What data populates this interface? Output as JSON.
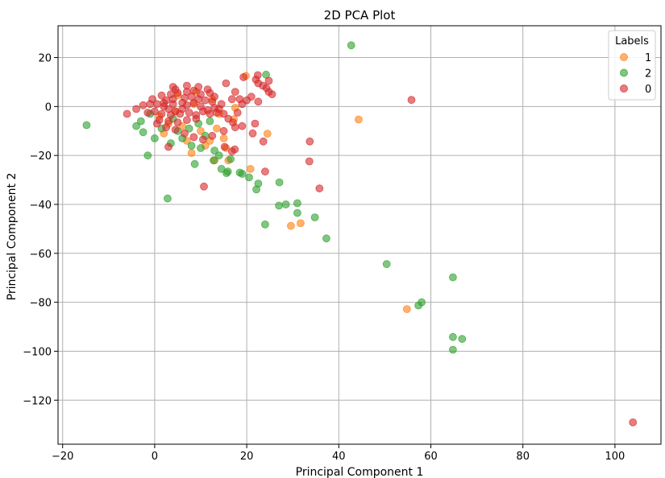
{
  "chart_data": {
    "type": "scatter",
    "title": "2D PCA Plot",
    "xlabel": "Principal Component 1",
    "ylabel": "Principal Component 2",
    "xlim": [
      -21,
      110
    ],
    "ylim": [
      -138,
      33
    ],
    "xticks": [
      -20,
      0,
      20,
      40,
      60,
      80,
      100
    ],
    "yticks": [
      20,
      0,
      -20,
      -40,
      -60,
      -80,
      -100,
      -120
    ],
    "grid": true,
    "legend": {
      "title": "Labels",
      "placement": "top-right"
    },
    "series": [
      {
        "name": "1",
        "color": "#ff7f0e",
        "points": [
          [
            44.3,
            -5.3
          ],
          [
            54.8,
            -82.8
          ],
          [
            29.6,
            -48.8
          ],
          [
            31.7,
            -47.7
          ],
          [
            20.8,
            -25.5
          ],
          [
            24.5,
            -11.1
          ],
          [
            17.2,
            -5.2
          ],
          [
            13.0,
            -22.0
          ],
          [
            15.5,
            -17.0
          ],
          [
            8.0,
            -19.0
          ],
          [
            12.0,
            -14.0
          ],
          [
            10.0,
            -10.0
          ],
          [
            6.0,
            -8.0
          ],
          [
            3.0,
            -7.0
          ],
          [
            14.0,
            -3.0
          ],
          [
            17.5,
            -0.5
          ],
          [
            5.0,
            4.5
          ],
          [
            9.0,
            6.0
          ],
          [
            2.0,
            -11.0
          ],
          [
            11.0,
            -16.0
          ],
          [
            16.0,
            -22.0
          ],
          [
            19.8,
            12.5
          ],
          [
            7.0,
            -14.0
          ],
          [
            13.5,
            -9.0
          ],
          [
            4.5,
            -2.0
          ],
          [
            8.5,
            1.0
          ],
          [
            12.5,
            3.0
          ],
          [
            15.0,
            -13.0
          ],
          [
            1.0,
            -4.0
          ]
        ]
      },
      {
        "name": "2",
        "color": "#2ca02c",
        "points": [
          [
            42.7,
            25.0
          ],
          [
            -14.8,
            -7.6
          ],
          [
            -1.5,
            -20.0
          ],
          [
            2.8,
            -37.6
          ],
          [
            24.0,
            -48.2
          ],
          [
            37.3,
            -53.9
          ],
          [
            34.8,
            -45.3
          ],
          [
            31.0,
            -43.5
          ],
          [
            31.0,
            -39.5
          ],
          [
            28.5,
            -40.0
          ],
          [
            27.0,
            -40.5
          ],
          [
            27.1,
            -31.0
          ],
          [
            22.1,
            -33.9
          ],
          [
            22.5,
            -31.5
          ],
          [
            20.5,
            -29.0
          ],
          [
            19.0,
            -27.5
          ],
          [
            18.5,
            -27.0
          ],
          [
            15.6,
            -27.2
          ],
          [
            15.9,
            -26.6
          ],
          [
            14.5,
            -25.5
          ],
          [
            12.8,
            -22.0
          ],
          [
            8.7,
            -23.5
          ],
          [
            50.4,
            -64.4
          ],
          [
            64.8,
            -69.8
          ],
          [
            58.0,
            -80.0
          ],
          [
            57.3,
            -81.3
          ],
          [
            64.8,
            -94.2
          ],
          [
            66.8,
            -95.0
          ],
          [
            64.8,
            -99.4
          ],
          [
            24.2,
            13.0
          ],
          [
            -4.0,
            -8.0
          ],
          [
            -2.5,
            -10.5
          ],
          [
            0.0,
            -13.0
          ],
          [
            3.5,
            -15.0
          ],
          [
            6.0,
            -13.0
          ],
          [
            8.0,
            -16.0
          ],
          [
            10.0,
            -17.0
          ],
          [
            13.0,
            -18.0
          ],
          [
            14.0,
            -20.0
          ],
          [
            16.5,
            -21.5
          ],
          [
            5.0,
            -10.0
          ],
          [
            1.5,
            -9.0
          ],
          [
            -3.0,
            -6.0
          ],
          [
            -1.0,
            -3.0
          ],
          [
            4.0,
            -5.0
          ],
          [
            11.0,
            -12.0
          ],
          [
            7.5,
            -9.0
          ],
          [
            9.5,
            -7.0
          ],
          [
            12.0,
            -6.0
          ]
        ]
      },
      {
        "name": "0",
        "color": "#d62728",
        "points": [
          [
            103.9,
            -129.1
          ],
          [
            55.8,
            2.7
          ],
          [
            35.8,
            -33.5
          ],
          [
            33.6,
            -22.4
          ],
          [
            33.7,
            -14.3
          ],
          [
            24.0,
            -26.6
          ],
          [
            23.6,
            -14.3
          ],
          [
            10.7,
            -32.7
          ],
          [
            15.2,
            -16.5
          ],
          [
            17.4,
            -17.5
          ],
          [
            16.8,
            -18.3
          ],
          [
            21.3,
            -11.0
          ],
          [
            21.8,
            -7.0
          ],
          [
            19.0,
            -8.0
          ],
          [
            17.5,
            -8.5
          ],
          [
            15.0,
            -10.0
          ],
          [
            12.5,
            -12.0
          ],
          [
            19.3,
            12.0
          ],
          [
            22.0,
            11.0
          ],
          [
            22.5,
            9.5
          ],
          [
            23.5,
            8.5
          ],
          [
            24.3,
            7.5
          ],
          [
            24.8,
            6.0
          ],
          [
            25.5,
            5.0
          ],
          [
            24.8,
            10.5
          ],
          [
            22.4,
            12.8
          ],
          [
            18.5,
            3.0
          ],
          [
            17.5,
            6.0
          ],
          [
            15.5,
            9.5
          ],
          [
            16.8,
            3.0
          ],
          [
            4.0,
            8.0
          ],
          [
            4.5,
            7.0
          ],
          [
            7.0,
            8.5
          ],
          [
            9.5,
            8.0
          ],
          [
            11.5,
            7.0
          ],
          [
            -6.0,
            -3.0
          ],
          [
            -4.0,
            -1.0
          ],
          [
            -2.5,
            0.5
          ],
          [
            -1.0,
            1.0
          ],
          [
            0.5,
            1.0
          ],
          [
            2.0,
            0.0
          ],
          [
            3.0,
            -1.0
          ],
          [
            4.5,
            -2.0
          ],
          [
            6.0,
            -1.0
          ],
          [
            7.0,
            0.5
          ],
          [
            8.5,
            1.5
          ],
          [
            10.0,
            0.0
          ],
          [
            11.5,
            -1.5
          ],
          [
            13.0,
            -0.5
          ],
          [
            14.5,
            1.0
          ],
          [
            1.5,
            -3.0
          ],
          [
            3.5,
            -3.5
          ],
          [
            5.5,
            -3.0
          ],
          [
            7.5,
            -2.5
          ],
          [
            9.0,
            -3.5
          ],
          [
            10.5,
            -2.0
          ],
          [
            12.0,
            -3.0
          ],
          [
            13.5,
            -2.5
          ],
          [
            0.0,
            -2.0
          ],
          [
            -1.5,
            -2.5
          ],
          [
            2.5,
            2.5
          ],
          [
            4.0,
            3.0
          ],
          [
            6.5,
            3.5
          ],
          [
            8.0,
            4.0
          ],
          [
            9.5,
            3.0
          ],
          [
            11.0,
            2.5
          ],
          [
            12.5,
            2.0
          ],
          [
            5.0,
            5.5
          ],
          [
            7.0,
            6.0
          ],
          [
            8.5,
            6.5
          ],
          [
            1.0,
            -5.5
          ],
          [
            3.0,
            -6.0
          ],
          [
            5.0,
            -6.5
          ],
          [
            7.0,
            -5.5
          ],
          [
            9.0,
            -5.0
          ],
          [
            6.0,
            1.5
          ],
          [
            4.0,
            1.0
          ],
          [
            2.0,
            1.5
          ],
          [
            10.0,
            5.0
          ],
          [
            12.0,
            5.5
          ],
          [
            13.0,
            4.0
          ],
          [
            14.0,
            -1.0
          ],
          [
            15.0,
            -3.0
          ],
          [
            16.0,
            -5.0
          ],
          [
            17.0,
            -6.5
          ],
          [
            18.0,
            -2.5
          ],
          [
            19.0,
            1.0
          ],
          [
            20.0,
            2.5
          ],
          [
            21.0,
            4.0
          ],
          [
            22.5,
            2.0
          ],
          [
            -0.5,
            3.0
          ],
          [
            1.5,
            4.5
          ],
          [
            3.5,
            5.0
          ],
          [
            0.5,
            -7.0
          ],
          [
            2.5,
            -8.5
          ],
          [
            4.5,
            -9.5
          ],
          [
            6.5,
            -11.0
          ],
          [
            8.5,
            -12.5
          ],
          [
            10.5,
            -13.5
          ],
          [
            3.0,
            -16.5
          ]
        ]
      }
    ]
  }
}
